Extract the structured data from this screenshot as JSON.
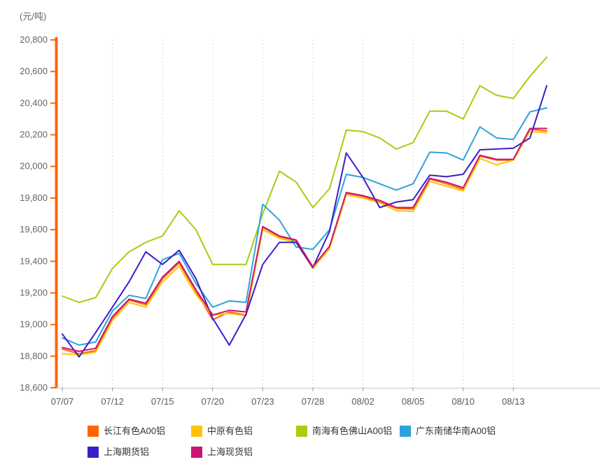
{
  "unit_label": "(元/吨)",
  "y_axis": {
    "min": 18600,
    "max": 20800,
    "step": 200,
    "axis_color": "#FF6600",
    "label_color": "#666666"
  },
  "x_axis": {
    "tick_labels": [
      "07/07",
      "07/12",
      "07/15",
      "07/20",
      "07/23",
      "07/28",
      "08/02",
      "08/05",
      "08/10",
      "08/13"
    ],
    "labeled_indices": [
      0,
      3,
      6,
      9,
      12,
      15,
      18,
      21,
      24,
      27
    ]
  },
  "chart_data": {
    "type": "line",
    "title": "",
    "xlabel": "",
    "ylabel": "(元/吨)",
    "ylim": [
      18600,
      20800
    ],
    "y_tick_step": 200,
    "grid": "vertical-dotted",
    "legend_position": "bottom",
    "x": [
      "07/07",
      "07/08",
      "07/09",
      "07/12",
      "07/13",
      "07/14",
      "07/15",
      "07/16",
      "07/19",
      "07/20",
      "07/21",
      "07/22",
      "07/23",
      "07/26",
      "07/27",
      "07/28",
      "07/29",
      "07/30",
      "08/02",
      "08/03",
      "08/04",
      "08/05",
      "08/06",
      "08/09",
      "08/10",
      "08/11",
      "08/12",
      "08/13",
      "08/16",
      "08/17"
    ],
    "series": [
      {
        "name": "长江有色A00铝",
        "key": "changjiang",
        "color": "#FF6600",
        "values": [
          18845,
          18815,
          18835,
          19040,
          19155,
          19125,
          19290,
          19390,
          19210,
          19030,
          19080,
          19060,
          19615,
          19555,
          19530,
          19360,
          19490,
          19830,
          19810,
          19775,
          19735,
          19730,
          19920,
          19890,
          19855,
          20065,
          20040,
          20040,
          20235,
          20225
        ]
      },
      {
        "name": "中原有色铝",
        "key": "zhongyuan",
        "color": "#FFC409",
        "values": [
          18815,
          18810,
          18825,
          19025,
          19140,
          19110,
          19270,
          19370,
          19190,
          19060,
          19070,
          19055,
          19600,
          19545,
          19520,
          19355,
          19480,
          19820,
          19800,
          19770,
          19720,
          19715,
          19905,
          19875,
          19845,
          20050,
          20010,
          20040,
          20220,
          20215
        ]
      },
      {
        "name": "南海有色佛山A00铝",
        "key": "nanhai",
        "color": "#A9CC12",
        "values": [
          19180,
          19140,
          19170,
          19355,
          19460,
          19520,
          19560,
          19720,
          19600,
          19380,
          19380,
          19380,
          19700,
          19970,
          19900,
          19740,
          19860,
          20230,
          20220,
          20180,
          20110,
          20150,
          20350,
          20350,
          20300,
          20510,
          20450,
          20430,
          20570,
          20690
        ]
      },
      {
        "name": "广东南储华南A00铝",
        "key": "guangdong",
        "color": "#2EA3DB",
        "values": [
          18915,
          18870,
          18890,
          19085,
          19185,
          19165,
          19410,
          19450,
          19260,
          19110,
          19150,
          19140,
          19760,
          19660,
          19490,
          19475,
          19600,
          19950,
          19930,
          19890,
          19850,
          19890,
          20090,
          20085,
          20040,
          20250,
          20180,
          20170,
          20345,
          20370
        ]
      },
      {
        "name": "上海期货铝",
        "key": "shfe",
        "color": "#3A1EC8",
        "values": [
          18940,
          18795,
          18950,
          19110,
          19270,
          19460,
          19380,
          19470,
          19290,
          19040,
          18870,
          19065,
          19380,
          19520,
          19520,
          19360,
          19590,
          20085,
          19930,
          19740,
          19775,
          19790,
          19945,
          19935,
          19950,
          20105,
          20110,
          20115,
          20180,
          20510
        ]
      },
      {
        "name": "上海现货铝",
        "key": "shanghai-spot",
        "color": "#CC1470",
        "values": [
          18855,
          18830,
          18850,
          19050,
          19160,
          19135,
          19300,
          19400,
          19220,
          19060,
          19090,
          19080,
          19620,
          19560,
          19535,
          19365,
          19495,
          19835,
          19815,
          19785,
          19740,
          19740,
          19925,
          19900,
          19865,
          20070,
          20045,
          20045,
          20240,
          20240
        ]
      }
    ]
  },
  "style_colors": {
    "gridline": "#DBDBDB",
    "x_axis_line": "#C8C8C8",
    "x_tick": "#999999",
    "legend_text": "#333333"
  }
}
